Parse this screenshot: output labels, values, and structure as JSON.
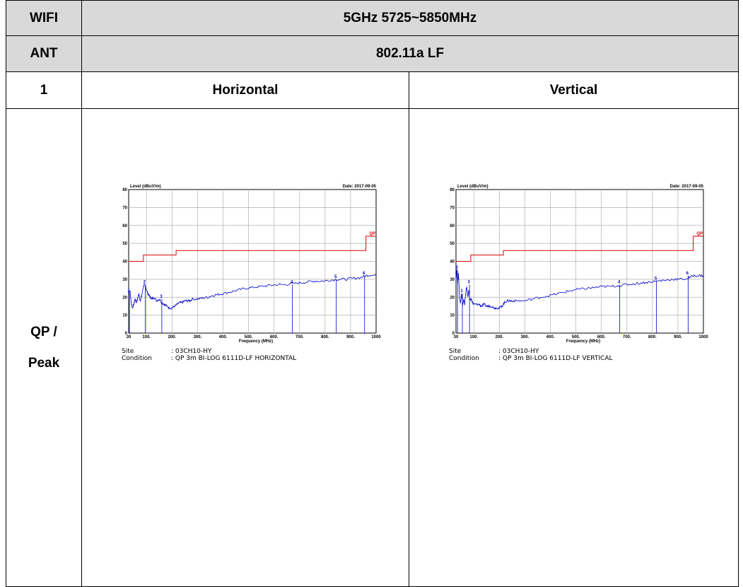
{
  "rows": {
    "wifi_label": "WIFI",
    "wifi_value": "5GHz 5725~5850MHz",
    "ant_label": "ANT",
    "ant_value": "802.11a LF",
    "index_label": "1",
    "horizontal_label": "Horizontal",
    "vertical_label": "Vertical",
    "mode_label_1": "QP /",
    "mode_label_2": "Peak"
  },
  "info": {
    "site_key": "Site",
    "condition_key": "Condition",
    "site_value": ": 03CH10-HY",
    "horizontal_condition": ": QP 3m BI-LOG 6111D-LF HORIZONTAL",
    "vertical_condition": ": QP 3m BI-LOG 6111D-LF VERTICAL"
  },
  "chart_data": [
    {
      "type": "line",
      "ylabel": "Level (dBuV/m)",
      "xlabel": "Frequency (MHz)",
      "date": "Date: 2017-09-05",
      "limit_label": "QP",
      "xlim": [
        30,
        1000
      ],
      "ylim": [
        0,
        80
      ],
      "x_ticks": [
        "30",
        "100.",
        "200.",
        "300.",
        "400.",
        "500.",
        "600.",
        "700.",
        "800.",
        "900.",
        "1000"
      ],
      "y_ticks": [
        "0",
        "10",
        "20",
        "30",
        "40",
        "50",
        "60",
        "70",
        "80"
      ],
      "limit_line": {
        "x": [
          30,
          88,
          88,
          216,
          216,
          960,
          960,
          1000
        ],
        "y": [
          40,
          40,
          43.5,
          43.5,
          46,
          46,
          54,
          54
        ]
      },
      "trace": {
        "x": [
          30,
          35,
          40,
          45,
          50,
          55,
          60,
          65,
          70,
          75,
          80,
          85,
          90,
          95,
          100,
          105,
          110,
          115,
          120,
          130,
          140,
          150,
          160,
          170,
          180,
          190,
          200,
          210,
          220,
          230,
          240,
          250,
          260,
          270,
          280,
          300,
          320,
          340,
          360,
          380,
          400,
          430,
          460,
          490,
          520,
          550,
          580,
          610,
          640,
          670,
          700,
          730,
          760,
          790,
          820,
          850,
          880,
          910,
          940,
          960,
          980,
          1000
        ],
        "y": [
          22,
          24,
          17,
          14,
          16,
          19,
          17,
          19,
          22,
          18,
          20,
          24,
          27,
          26,
          24,
          22,
          21,
          20,
          19,
          20,
          18,
          19,
          17,
          16,
          15,
          14,
          14,
          15,
          16,
          17,
          17,
          18,
          18,
          18,
          19,
          19,
          19.5,
          20,
          21,
          21.5,
          22,
          23,
          24,
          25,
          25.5,
          26,
          26.5,
          27,
          27,
          27.5,
          28,
          28.5,
          29,
          29,
          29.5,
          30,
          30,
          30.5,
          31,
          32,
          32.5,
          32
        ]
      },
      "markers": [
        {
          "label": "1",
          "x": 33,
          "y": 22
        },
        {
          "label": "2",
          "x": 95,
          "y": 27
        },
        {
          "label": "3",
          "x": 160,
          "y": 19
        },
        {
          "label": "4",
          "x": 672,
          "y": 27
        },
        {
          "label": "5",
          "x": 844,
          "y": 30
        },
        {
          "label": "6",
          "x": 955,
          "y": 32
        }
      ]
    },
    {
      "type": "line",
      "ylabel": "Level (dBuV/m)",
      "xlabel": "Frequency (MHz)",
      "date": "Date: 2017-09-05",
      "limit_label": "QP",
      "xlim": [
        30,
        1000
      ],
      "ylim": [
        0,
        80
      ],
      "x_ticks": [
        "30",
        "100.",
        "200.",
        "300.",
        "400.",
        "500.",
        "600.",
        "700.",
        "800.",
        "900.",
        "1000"
      ],
      "y_ticks": [
        "0",
        "10",
        "20",
        "30",
        "40",
        "50",
        "60",
        "70",
        "80"
      ],
      "limit_line": {
        "x": [
          30,
          88,
          88,
          216,
          216,
          960,
          960,
          1000
        ],
        "y": [
          40,
          40,
          43.5,
          43.5,
          46,
          46,
          54,
          54
        ]
      },
      "trace": {
        "x": [
          30,
          33,
          36,
          40,
          44,
          48,
          52,
          56,
          60,
          64,
          68,
          72,
          76,
          80,
          85,
          90,
          95,
          100,
          110,
          120,
          130,
          140,
          150,
          160,
          170,
          180,
          190,
          200,
          210,
          220,
          230,
          240,
          250,
          270,
          300,
          330,
          360,
          400,
          430,
          460,
          490,
          520,
          550,
          580,
          610,
          640,
          670,
          700,
          730,
          760,
          790,
          820,
          850,
          880,
          910,
          940,
          960,
          980,
          1000
        ],
        "y": [
          30,
          35,
          28,
          33,
          20,
          17,
          22,
          15,
          19,
          16,
          22,
          26,
          20,
          24,
          18,
          19,
          17,
          16,
          16,
          16,
          15,
          16,
          15,
          15,
          15,
          14,
          14,
          14,
          15,
          17,
          18,
          18,
          18,
          18,
          18,
          19,
          20,
          21,
          22,
          23,
          24,
          24.5,
          25,
          25.5,
          26,
          26,
          26.5,
          27,
          27.5,
          28,
          28.5,
          29,
          29.5,
          30,
          30,
          30.5,
          32,
          32,
          32
        ]
      },
      "markers": [
        {
          "label": "2",
          "x": 36,
          "y": 35
        },
        {
          "label": "1",
          "x": 55,
          "y": 22
        },
        {
          "label": "3",
          "x": 83,
          "y": 27
        },
        {
          "label": "4",
          "x": 672,
          "y": 27
        },
        {
          "label": "5",
          "x": 816,
          "y": 29
        },
        {
          "label": "6",
          "x": 940,
          "y": 32
        }
      ]
    }
  ]
}
